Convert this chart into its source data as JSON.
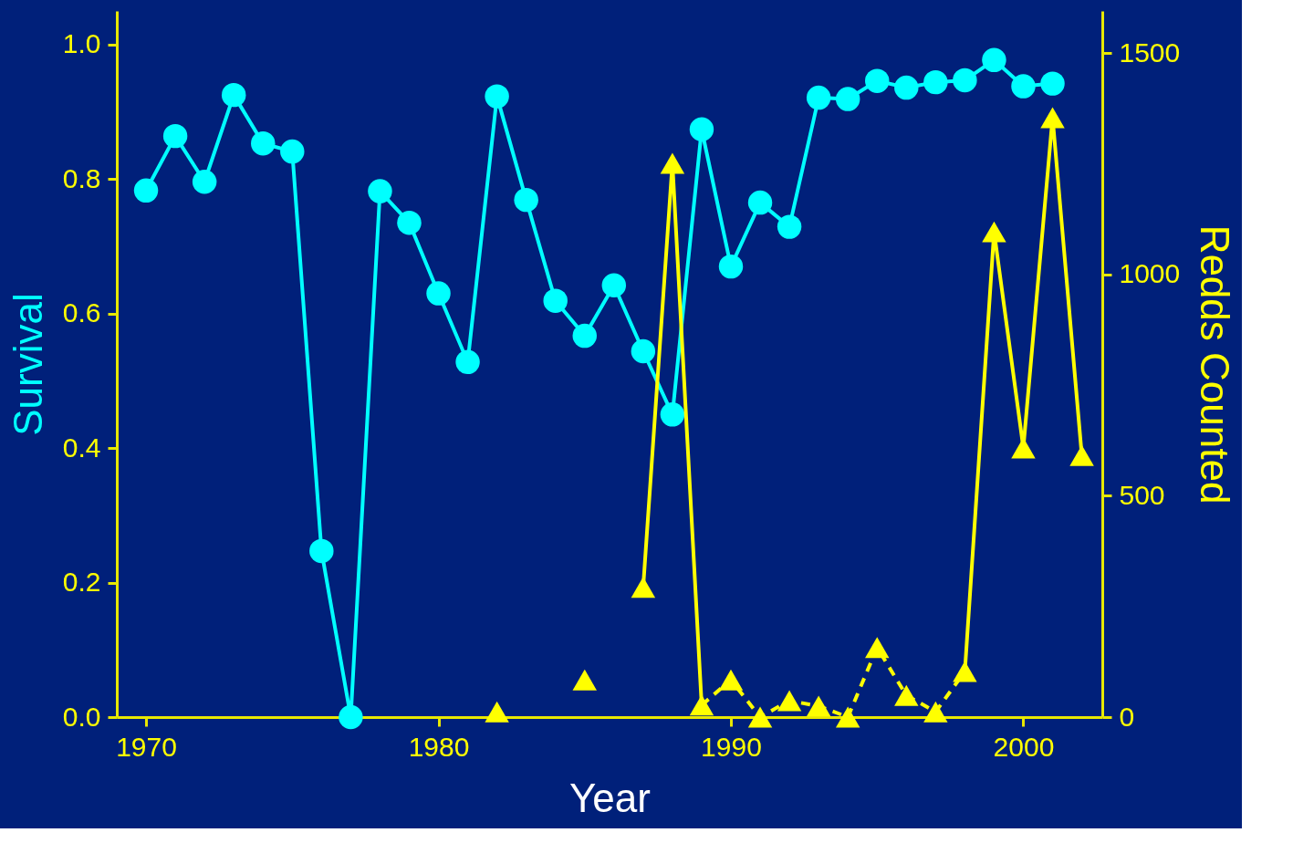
{
  "chart_data": {
    "type": "line",
    "xlabel": "Year",
    "ylabel": "Survival",
    "y2label": "Redds Counted",
    "xlim": [
      1969,
      2002.7
    ],
    "xticks": [
      1970,
      1980,
      1990,
      2000
    ],
    "ylim": [
      0,
      1.05
    ],
    "yticks": [
      {
        "value": 0,
        "label": "0.0"
      },
      0.2,
      0.4,
      0.6,
      0.8,
      {
        "value": 1,
        "label": "1.0"
      }
    ],
    "y2lim": [
      0,
      1595
    ],
    "y2ticks": [
      0,
      500,
      1000,
      1500
    ],
    "grid": false,
    "series": [
      {
        "color": "#00ffff",
        "marker": "circle",
        "line_style": "solid",
        "x": [
          1970,
          1971,
          1972,
          1973,
          1974,
          1975,
          1976,
          1977,
          1978,
          1979,
          1980,
          1981,
          1982,
          1983,
          1984,
          1985,
          1986,
          1987,
          1988,
          1989,
          1990,
          1991,
          1992,
          1993,
          1994,
          1995,
          1996,
          1997,
          1998,
          1999,
          2000,
          2001
        ],
        "values": [
          0.783,
          0.864,
          0.796,
          0.925,
          0.853,
          0.841,
          0.247,
          0.0,
          0.782,
          0.735,
          0.63,
          0.528,
          0.923,
          0.769,
          0.619,
          0.567,
          0.642,
          0.544,
          0.45,
          0.874,
          0.67,
          0.765,
          0.729,
          0.921,
          0.919,
          0.946,
          0.936,
          0.944,
          0.947,
          0.977,
          0.938,
          0.942
        ]
      },
      {
        "type": "line",
        "axis": "y2",
        "color": "#ffff00",
        "marker": "none",
        "line_style": "solid",
        "x": [
          1987,
          1988,
          1989
        ],
        "values": [
          293,
          1251,
          27
        ]
      },
      {
        "type": "line",
        "axis": "y2",
        "color": "#ffff00",
        "marker": "none",
        "line_style": "dashed",
        "x": [
          1989,
          1990,
          1991,
          1992,
          1993,
          1994,
          1995,
          1996,
          1997,
          1998
        ],
        "values": [
          27,
          84,
          0,
          37,
          25,
          0,
          157,
          49,
          12,
          103
        ]
      },
      {
        "type": "line",
        "axis": "y2",
        "color": "#ffff00",
        "marker": "none",
        "line_style": "solid",
        "x": [
          1998,
          1999,
          2000,
          2001,
          2002
        ],
        "values": [
          103,
          1096,
          608,
          1354,
          591
        ]
      },
      {
        "type": "scatter",
        "axis": "y2",
        "color": "#ffff00",
        "marker": "triangle",
        "x": [
          1982,
          1985,
          1987,
          1988,
          1989,
          1990,
          1991,
          1992,
          1993,
          1994,
          1995,
          1996,
          1997,
          1998,
          1999,
          2000,
          2001,
          2002
        ],
        "values": [
          12,
          84,
          293,
          1251,
          27,
          84,
          0,
          37,
          25,
          0,
          157,
          49,
          12,
          103,
          1096,
          608,
          1354,
          591
        ]
      }
    ]
  }
}
